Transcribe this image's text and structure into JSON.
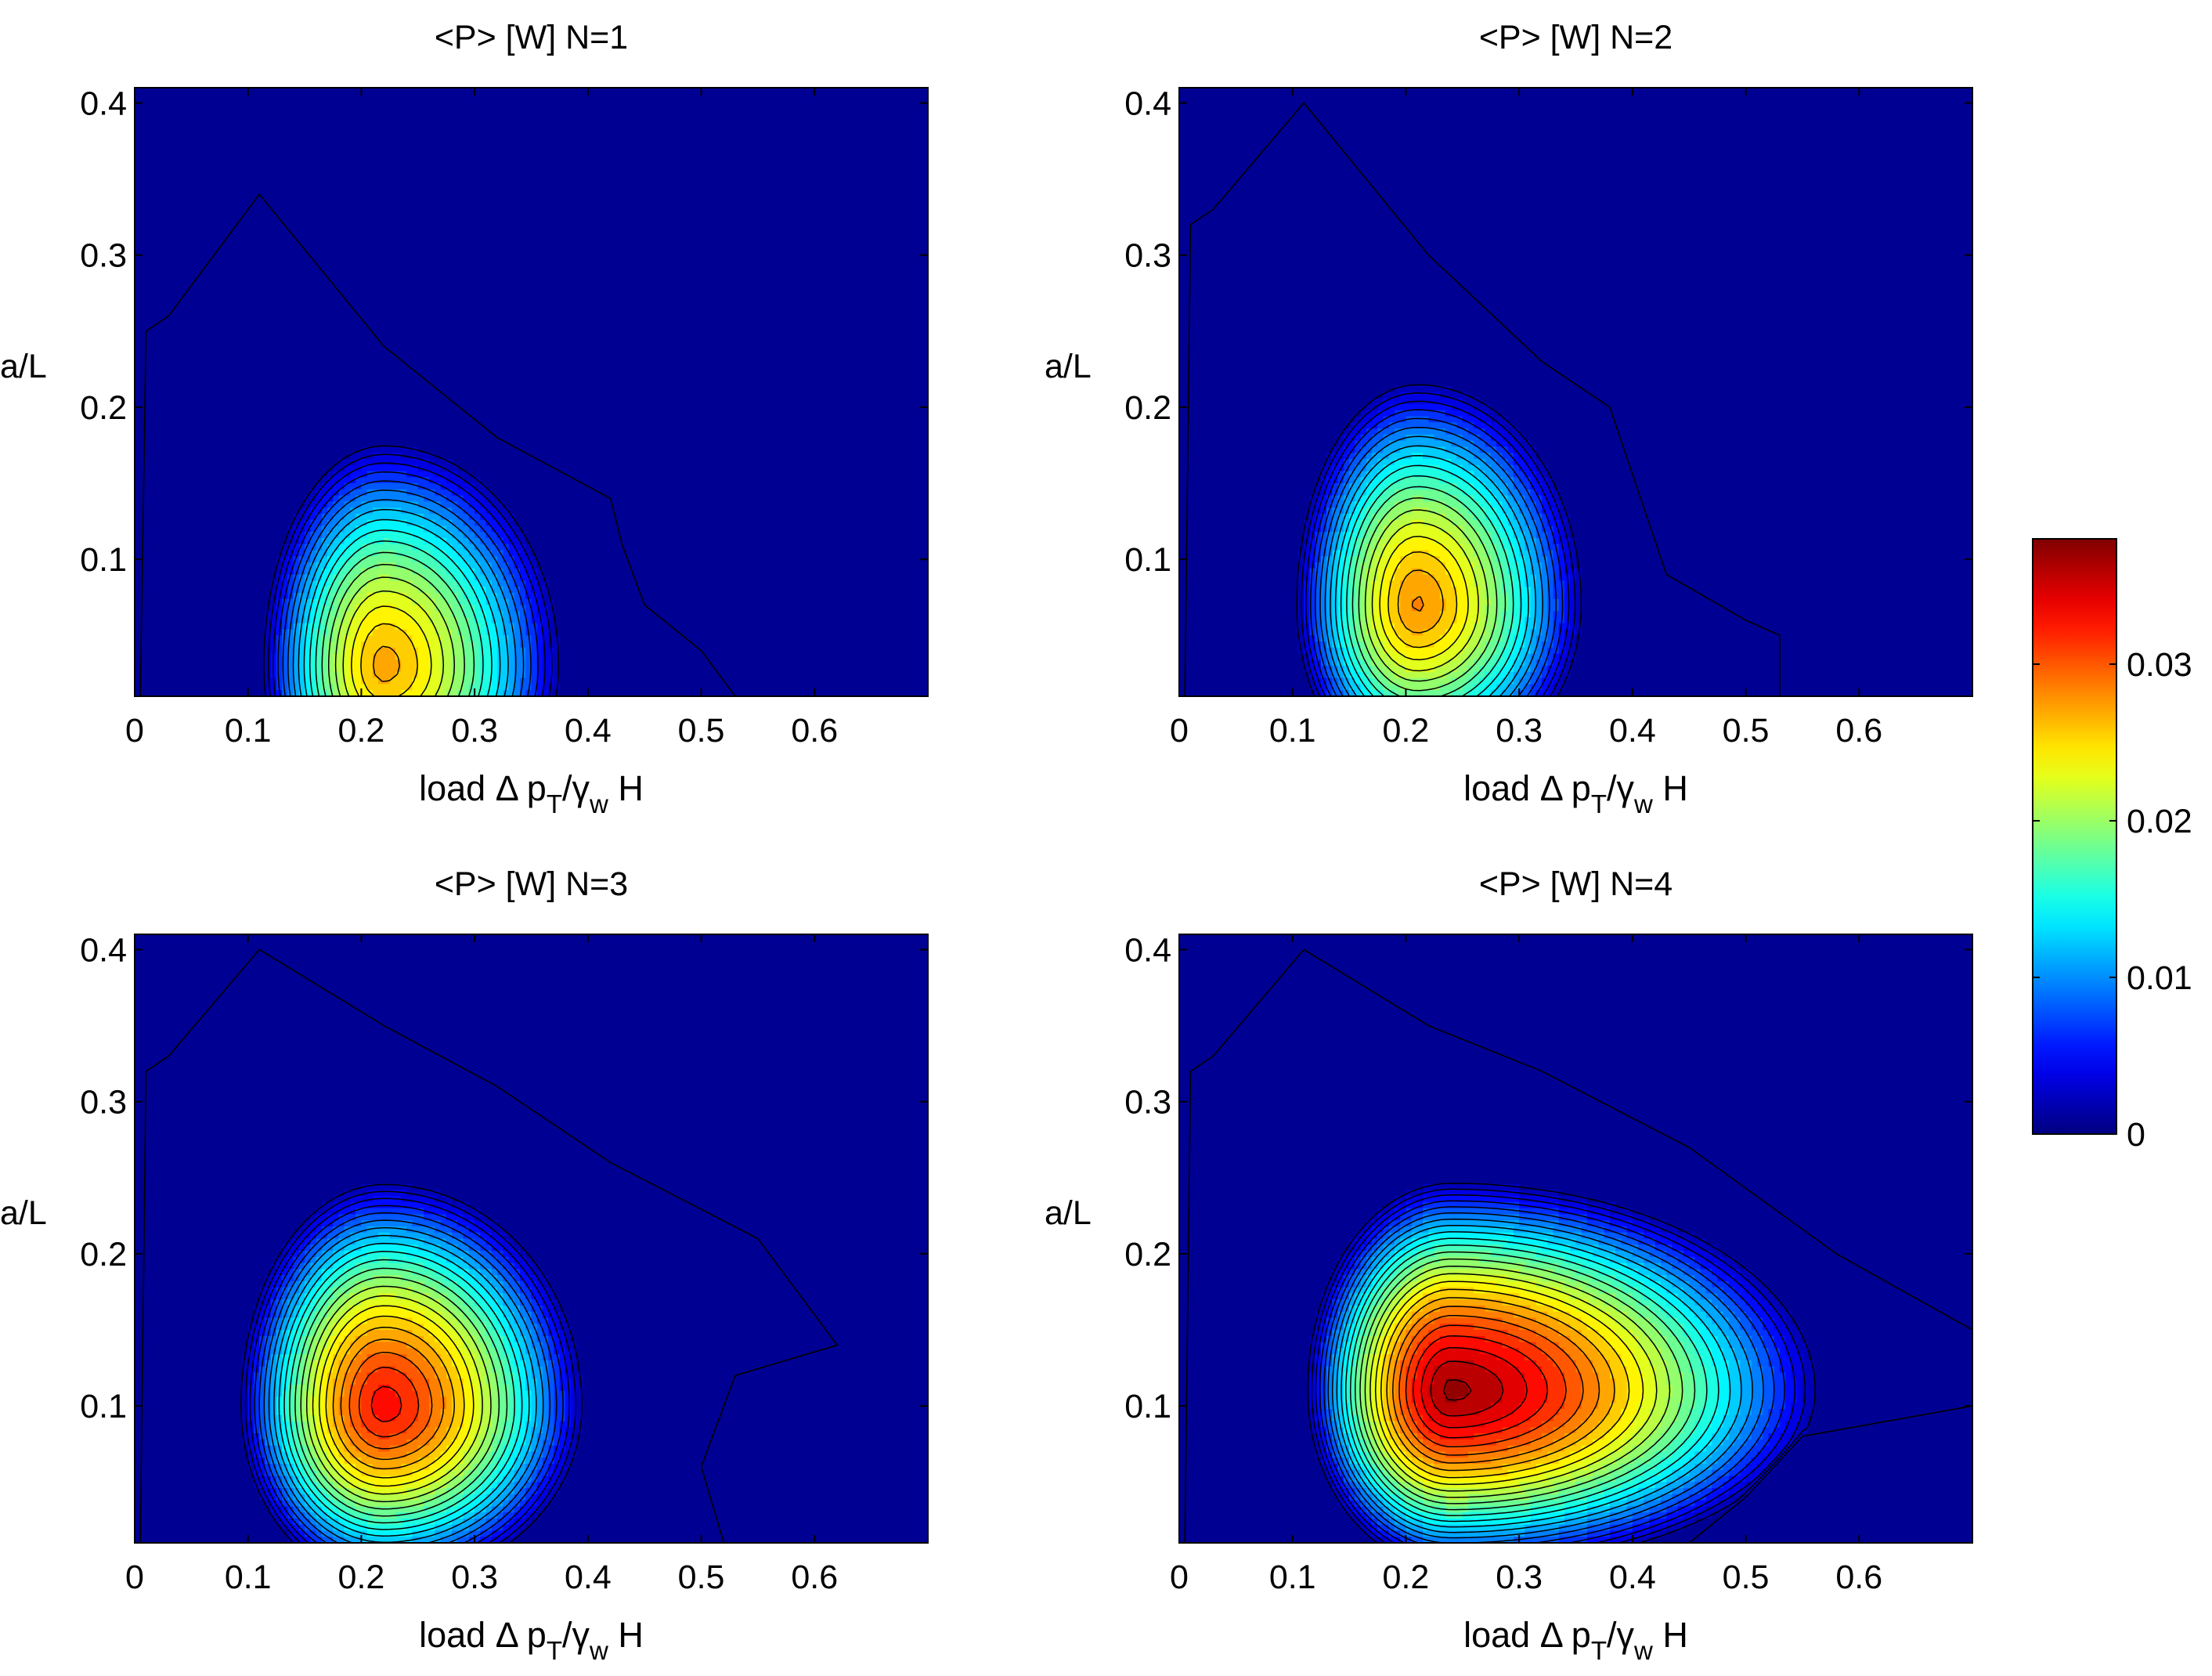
{
  "chart_data": [
    {
      "type": "heatmap",
      "title": "<P> [W]    N=1",
      "xlabel": {
        "pre": "load ",
        "delta": "Δ",
        "p": " p",
        "sub1": "T",
        "slash": "/",
        "gamma": "γ",
        "sub2": "w",
        "post": " H"
      },
      "ylabel": "a/L",
      "xlim": [
        0,
        0.7
      ],
      "ylim": [
        0.01,
        0.41
      ],
      "xticks": [
        "0",
        "0.1",
        "0.2",
        "0.3",
        "0.4",
        "0.5",
        "0.6"
      ],
      "yticks": [
        "0.1",
        "0.2",
        "0.3",
        "0.4"
      ],
      "peak": {
        "x": 0.22,
        "y": 0.03,
        "value": 0.027
      },
      "spread": {
        "left": 0.11,
        "right": 0.16,
        "down": 0.12,
        "up": 0.15
      },
      "outline": [
        [
          0.005,
          0.01
        ],
        [
          0.01,
          0.25
        ],
        [
          0.03,
          0.26
        ],
        [
          0.11,
          0.34
        ],
        [
          0.22,
          0.24
        ],
        [
          0.32,
          0.18
        ],
        [
          0.42,
          0.14
        ],
        [
          0.43,
          0.11
        ],
        [
          0.45,
          0.07
        ],
        [
          0.5,
          0.04
        ],
        [
          0.53,
          0.01
        ]
      ]
    },
    {
      "type": "heatmap",
      "title": "<P> [W]    N=2",
      "xlabel": {
        "pre": "load ",
        "delta": "Δ",
        "p": " p",
        "sub1": "T",
        "slash": "/",
        "gamma": "γ",
        "sub2": "w",
        "post": " H"
      },
      "ylabel": "a/L",
      "xlim": [
        0,
        0.7
      ],
      "ylim": [
        0.01,
        0.41
      ],
      "xticks": [
        "0",
        "0.1",
        "0.2",
        "0.3",
        "0.4",
        "0.5",
        "0.6"
      ],
      "yticks": [
        "0.1",
        "0.2",
        "0.3",
        "0.4"
      ],
      "peak": {
        "x": 0.21,
        "y": 0.07,
        "value": 0.028
      },
      "spread": {
        "left": 0.11,
        "right": 0.15,
        "down": 0.12,
        "up": 0.15
      },
      "outline": [
        [
          0.005,
          0.01
        ],
        [
          0.01,
          0.32
        ],
        [
          0.03,
          0.33
        ],
        [
          0.11,
          0.4
        ],
        [
          0.22,
          0.3
        ],
        [
          0.32,
          0.23
        ],
        [
          0.38,
          0.2
        ],
        [
          0.43,
          0.09
        ],
        [
          0.5,
          0.06
        ],
        [
          0.53,
          0.05
        ],
        [
          0.53,
          0.01
        ]
      ]
    },
    {
      "type": "heatmap",
      "title": "<P> [W]    N=3",
      "xlabel": {
        "pre": "load ",
        "delta": "Δ",
        "p": " p",
        "sub1": "T",
        "slash": "/",
        "gamma": "γ",
        "sub2": "w",
        "post": " H"
      },
      "ylabel": "a/L",
      "xlim": [
        0,
        0.7
      ],
      "ylim": [
        0.01,
        0.41
      ],
      "xticks": [
        "0",
        "0.1",
        "0.2",
        "0.3",
        "0.4",
        "0.5",
        "0.6"
      ],
      "yticks": [
        "0.1",
        "0.2",
        "0.3",
        "0.4"
      ],
      "peak": {
        "x": 0.22,
        "y": 0.1,
        "value": 0.033
      },
      "spread": {
        "left": 0.13,
        "right": 0.18,
        "down": 0.12,
        "up": 0.15
      },
      "outline": [
        [
          0.005,
          0.01
        ],
        [
          0.01,
          0.32
        ],
        [
          0.03,
          0.33
        ],
        [
          0.11,
          0.4
        ],
        [
          0.22,
          0.35
        ],
        [
          0.32,
          0.31
        ],
        [
          0.42,
          0.26
        ],
        [
          0.55,
          0.21
        ],
        [
          0.62,
          0.14
        ],
        [
          0.53,
          0.12
        ],
        [
          0.5,
          0.06
        ],
        [
          0.52,
          0.01
        ]
      ]
    },
    {
      "type": "heatmap",
      "title": "<P> [W]    N=4",
      "xlabel": {
        "pre": "load ",
        "delta": "Δ",
        "p": " p",
        "sub1": "T",
        "slash": "/",
        "gamma": "γ",
        "sub2": "w",
        "post": " H"
      },
      "ylabel": "a/L",
      "xlim": [
        0,
        0.7
      ],
      "ylim": [
        0.01,
        0.41
      ],
      "xticks": [
        "0",
        "0.1",
        "0.2",
        "0.3",
        "0.4",
        "0.5",
        "0.6"
      ],
      "yticks": [
        "0.1",
        "0.2",
        "0.3",
        "0.4"
      ],
      "peak": {
        "x": 0.24,
        "y": 0.11,
        "value": 0.037
      },
      "spread": {
        "left": 0.13,
        "right": 0.33,
        "down": 0.12,
        "up": 0.14
      },
      "outline": [
        [
          0.005,
          0.01
        ],
        [
          0.01,
          0.32
        ],
        [
          0.03,
          0.33
        ],
        [
          0.11,
          0.4
        ],
        [
          0.22,
          0.35
        ],
        [
          0.32,
          0.32
        ],
        [
          0.45,
          0.27
        ],
        [
          0.58,
          0.2
        ],
        [
          0.7,
          0.15
        ],
        [
          0.7,
          0.1
        ],
        [
          0.55,
          0.08
        ],
        [
          0.5,
          0.04
        ],
        [
          0.45,
          0.01
        ]
      ]
    }
  ],
  "colorbar": {
    "ticks": [
      "0",
      "0.01",
      "0.02",
      "0.03"
    ],
    "tick_values": [
      0,
      0.01,
      0.02,
      0.03
    ],
    "range": [
      0,
      0.038
    ],
    "colormap": "jet",
    "colormap_stops": [
      "#00008f",
      "#0000ff",
      "#00ffff",
      "#ffff00",
      "#ff0000",
      "#800000"
    ]
  }
}
